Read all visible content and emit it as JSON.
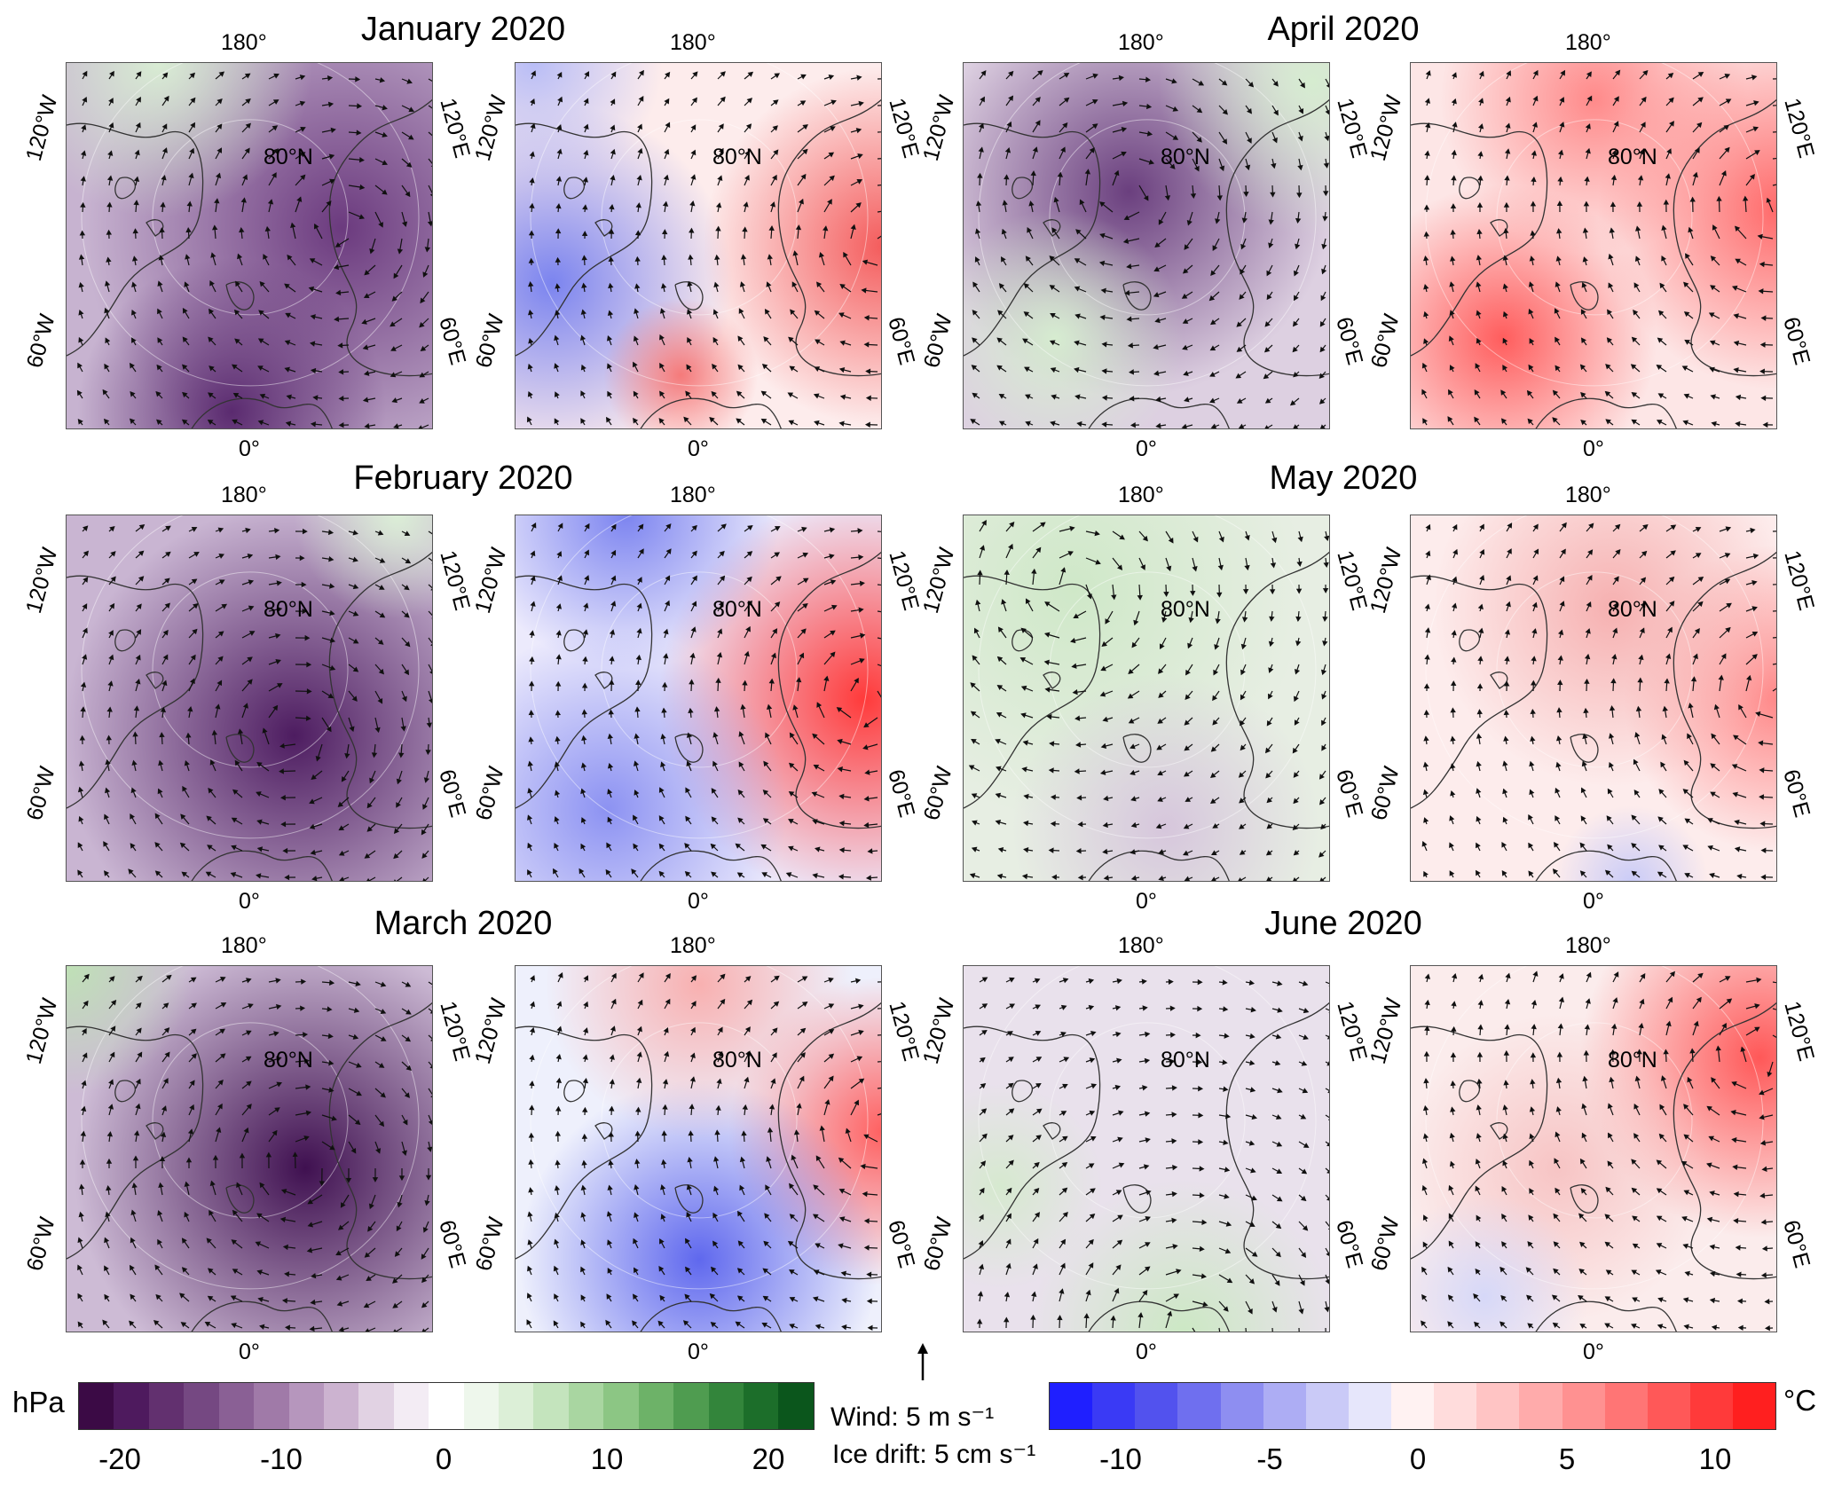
{
  "months": [
    {
      "title": "January 2020",
      "slp": "jan",
      "t": "jan"
    },
    {
      "title": "February 2020",
      "slp": "feb",
      "t": "feb"
    },
    {
      "title": "March 2020",
      "slp": "mar",
      "t": "mar"
    },
    {
      "title": "April 2020",
      "slp": "apr",
      "t": "apr"
    },
    {
      "title": "May 2020",
      "slp": "may",
      "t": "may"
    },
    {
      "title": "June 2020",
      "slp": "jun",
      "t": "jun"
    }
  ],
  "map_labels": {
    "top": "180°",
    "bottom": "0°",
    "left_upper": "120°W",
    "left_lower": "60°W",
    "right_upper": "120°E",
    "right_lower": "60°E",
    "lat": "80°N"
  },
  "pressure_colorbar": {
    "unit": "hPa",
    "ticks": [
      "-20",
      "-10",
      "0",
      "10",
      "20"
    ],
    "colors": [
      "#3b0a45",
      "#4e1a5e",
      "#62306f",
      "#754882",
      "#8a6095",
      "#a07aa8",
      "#b696bd",
      "#ccb3d0",
      "#e1d2e3",
      "#f3ecf4",
      "#ffffff",
      "#eef7ec",
      "#dcefd7",
      "#c4e4bd",
      "#a9d6a1",
      "#8cc684",
      "#6db268",
      "#4f9c50",
      "#33853b",
      "#1c6e2a",
      "#0b561c"
    ]
  },
  "temperature_colorbar": {
    "unit": "°C",
    "ticks": [
      "-10",
      "-5",
      "0",
      "5",
      "10"
    ],
    "colors": [
      "#1f1fff",
      "#3a3af5",
      "#5252ee",
      "#6f6fef",
      "#8e8ef1",
      "#adadf4",
      "#cacaf7",
      "#e6e6fb",
      "#fff2f2",
      "#ffdcdc",
      "#ffc4c4",
      "#ffabab",
      "#ff9191",
      "#ff7575",
      "#ff5858",
      "#ff3a3a",
      "#ff1f1f"
    ]
  },
  "vector_legend": {
    "wind": "Wind: 5 m s⁻¹",
    "ice": "Ice drift: 5 cm s⁻¹"
  }
}
